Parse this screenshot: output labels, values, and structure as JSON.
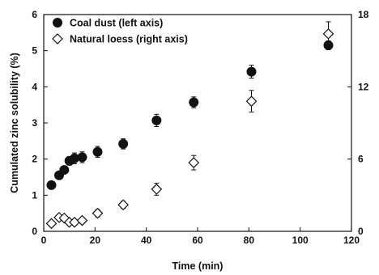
{
  "chart_data": {
    "type": "scatter",
    "title": "",
    "xlabel": "Time (min)",
    "ylabel": "Cumulated zinc solubility (%)",
    "xlim": [
      0,
      120
    ],
    "ylim_left": [
      0,
      6
    ],
    "ylim_right": [
      0,
      18
    ],
    "x_ticks": [
      "0",
      "20",
      "40",
      "60",
      "80",
      "100",
      "120"
    ],
    "y_left_ticks": [
      "0",
      "1",
      "2",
      "3",
      "4",
      "5",
      "6"
    ],
    "y_right_ticks": [
      "0",
      "6",
      "12",
      "18"
    ],
    "grid": false,
    "legend_placement": "top-left",
    "series": [
      {
        "name": "Coal dust (left axis)",
        "axis": "left",
        "marker": "filled-circle",
        "color": "#111111",
        "x": [
          3,
          6,
          8,
          10,
          12,
          15,
          21,
          31,
          44,
          58.5,
          81,
          111
        ],
        "y": [
          1.28,
          1.55,
          1.7,
          1.95,
          2.02,
          2.05,
          2.2,
          2.42,
          3.07,
          3.57,
          4.42,
          5.15
        ],
        "err": [
          0.07,
          0.08,
          0.1,
          0.12,
          0.15,
          0.15,
          0.15,
          0.14,
          0.17,
          0.15,
          0.18,
          0.12
        ]
      },
      {
        "name": "Natural loess (right axis)",
        "axis": "right",
        "marker": "open-diamond",
        "color": "#111111",
        "x": [
          3,
          6,
          8,
          10,
          12,
          15,
          21,
          31,
          44,
          58.5,
          81,
          111
        ],
        "y": [
          0.65,
          1.15,
          1.1,
          0.75,
          0.75,
          0.9,
          1.5,
          2.2,
          3.5,
          5.7,
          10.8,
          16.4
        ],
        "err": [
          0.1,
          0.15,
          0.15,
          0.15,
          0.15,
          0.15,
          0.3,
          0.3,
          0.5,
          0.6,
          0.9,
          1.0
        ]
      }
    ]
  }
}
